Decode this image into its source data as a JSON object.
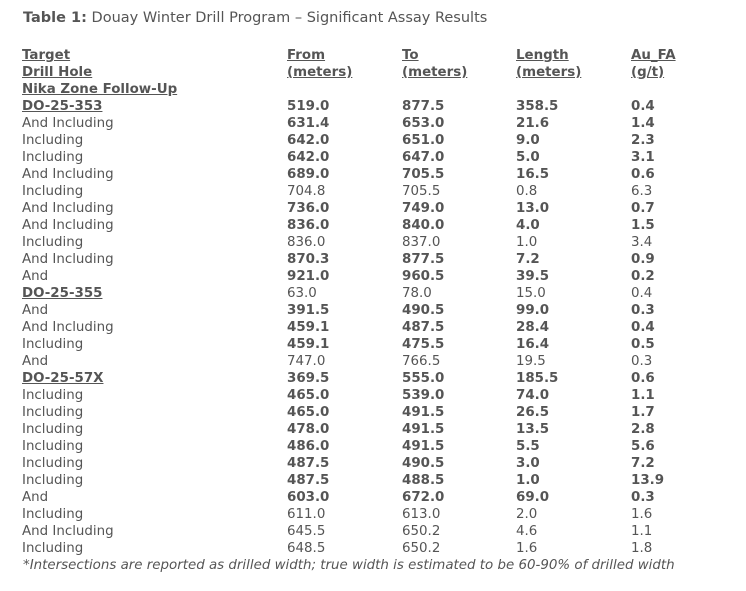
{
  "caption": {
    "label": "Table 1:",
    "text": " Douay Winter Drill Program – Significant Assay Results"
  },
  "headers": {
    "col0_line1": "Target",
    "col0_line2": "Drill Hole",
    "from_line1": "From",
    "from_line2": "(meters)",
    "to_line1": "To",
    "to_line2": "(meters)",
    "length_line1": "Length",
    "length_line2": "(meters)",
    "au_line1": "Au_FA",
    "au_line2": "(g/t)"
  },
  "zone_title": "Nika Zone Follow-Up",
  "rows": [
    {
      "label": "DO-25-353",
      "from": "519.0",
      "to": "877.5",
      "length": "358.5",
      "au": "0.4",
      "type": "hole",
      "bold": true
    },
    {
      "label": "And Including",
      "from": "631.4",
      "to": "653.0",
      "length": "21.6",
      "au": "1.4",
      "type": "row",
      "bold": true
    },
    {
      "label": "Including",
      "from": "642.0",
      "to": "651.0",
      "length": "9.0",
      "au": "2.3",
      "type": "row",
      "bold": true
    },
    {
      "label": "Including",
      "from": "642.0",
      "to": "647.0",
      "length": "5.0",
      "au": "3.1",
      "type": "row",
      "bold": true
    },
    {
      "label": "And Including",
      "from": "689.0",
      "to": "705.5",
      "length": "16.5",
      "au": "0.6",
      "type": "row",
      "bold": true
    },
    {
      "label": "Including",
      "from": "704.8",
      "to": "705.5",
      "length": "0.8",
      "au": "6.3",
      "type": "row",
      "bold": false
    },
    {
      "label": "And Including",
      "from": "736.0",
      "to": "749.0",
      "length": "13.0",
      "au": "0.7",
      "type": "row",
      "bold": true
    },
    {
      "label": "And Including",
      "from": "836.0",
      "to": "840.0",
      "length": "4.0",
      "au": "1.5",
      "type": "row",
      "bold": true
    },
    {
      "label": "Including",
      "from": "836.0",
      "to": "837.0",
      "length": "1.0",
      "au": "3.4",
      "type": "row",
      "bold": false
    },
    {
      "label": "And Including",
      "from": "870.3",
      "to": "877.5",
      "length": "7.2",
      "au": "0.9",
      "type": "row",
      "bold": true
    },
    {
      "label": "And",
      "from": "921.0",
      "to": "960.5",
      "length": "39.5",
      "au": "0.2",
      "type": "row",
      "bold": true
    },
    {
      "label": "DO-25-355",
      "from": "63.0",
      "to": "78.0",
      "length": "15.0",
      "au": "0.4",
      "type": "hole",
      "bold": false
    },
    {
      "label": "And",
      "from": "391.5",
      "to": "490.5",
      "length": "99.0",
      "au": "0.3",
      "type": "row",
      "bold": true
    },
    {
      "label": "And Including",
      "from": "459.1",
      "to": "487.5",
      "length": "28.4",
      "au": "0.4",
      "type": "row",
      "bold": true
    },
    {
      "label": "Including",
      "from": "459.1",
      "to": "475.5",
      "length": "16.4",
      "au": "0.5",
      "type": "row",
      "bold": true
    },
    {
      "label": "And",
      "from": "747.0",
      "to": "766.5",
      "length": "19.5",
      "au": "0.3",
      "type": "row",
      "bold": false
    },
    {
      "label": "DO-25-57X",
      "from": "369.5",
      "to": "555.0",
      "length": "185.5",
      "au": "0.6",
      "type": "hole",
      "bold": true
    },
    {
      "label": "Including",
      "from": "465.0",
      "to": "539.0",
      "length": "74.0",
      "au": "1.1",
      "type": "row",
      "bold": true
    },
    {
      "label": "Including",
      "from": "465.0",
      "to": "491.5",
      "length": "26.5",
      "au": "1.7",
      "type": "row",
      "bold": true
    },
    {
      "label": "Including",
      "from": "478.0",
      "to": "491.5",
      "length": "13.5",
      "au": "2.8",
      "type": "row",
      "bold": true
    },
    {
      "label": "Including",
      "from": "486.0",
      "to": "491.5",
      "length": "5.5",
      "au": "5.6",
      "type": "row",
      "bold": true
    },
    {
      "label": "Including",
      "from": "487.5",
      "to": "490.5",
      "length": "3.0",
      "au": "7.2",
      "type": "row",
      "bold": true
    },
    {
      "label": "Including",
      "from": "487.5",
      "to": "488.5",
      "length": "1.0",
      "au": "13.9",
      "type": "row",
      "bold": true
    },
    {
      "label": "And",
      "from": "603.0",
      "to": "672.0",
      "length": "69.0",
      "au": "0.3",
      "type": "row",
      "bold": true
    },
    {
      "label": "Including",
      "from": "611.0",
      "to": "613.0",
      "length": "2.0",
      "au": "1.6",
      "type": "row",
      "bold": false
    },
    {
      "label": "And Including",
      "from": "645.5",
      "to": "650.2",
      "length": "4.6",
      "au": "1.1",
      "type": "row",
      "bold": false
    },
    {
      "label": "Including",
      "from": "648.5",
      "to": "650.2",
      "length": "1.6",
      "au": "1.8",
      "type": "row",
      "bold": false
    }
  ],
  "footnote": "*Intersections are reported as drilled width; true width is estimated to be 60-90% of drilled width"
}
